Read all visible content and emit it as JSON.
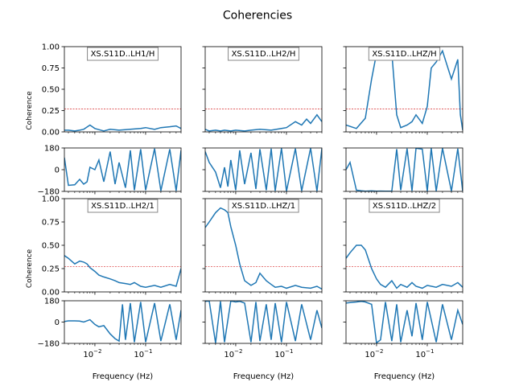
{
  "figure": {
    "title": "Coherencies",
    "xlabel": "Frequency (Hz)",
    "coh_ylabel": "Coherence"
  },
  "chart_data": {
    "type": "line",
    "title": "Coherencies",
    "xscale": "log",
    "xlim": [
      0.0025,
      0.5
    ],
    "xticks": [
      {
        "v": 0.01,
        "label": "10^-2"
      },
      {
        "v": 0.1,
        "label": "10^-1"
      }
    ],
    "coh_ylim": [
      0,
      1
    ],
    "coh_yticks": [
      "0.00",
      "0.25",
      "0.50",
      "0.75",
      "1.00"
    ],
    "phase_ylim": [
      -180,
      180
    ],
    "phase_yticks": [
      "−180",
      "0",
      "180"
    ],
    "threshold": 0.27,
    "line_color": "#1f77b4",
    "threshold_color": "#d62728",
    "panels": [
      {
        "label": "XS.S11D..LH1/H",
        "coherence": {
          "x": [
            0.0025,
            0.003,
            0.004,
            0.005,
            0.006,
            0.008,
            0.01,
            0.015,
            0.02,
            0.03,
            0.05,
            0.08,
            0.1,
            0.15,
            0.2,
            0.3,
            0.4,
            0.5
          ],
          "y": [
            0.02,
            0.02,
            0.01,
            0.02,
            0.03,
            0.08,
            0.04,
            0.01,
            0.03,
            0.02,
            0.03,
            0.04,
            0.05,
            0.03,
            0.05,
            0.06,
            0.07,
            0.04
          ]
        },
        "phase": {
          "x": [
            0.0025,
            0.003,
            0.004,
            0.005,
            0.006,
            0.007,
            0.008,
            0.01,
            0.012,
            0.015,
            0.02,
            0.025,
            0.03,
            0.04,
            0.05,
            0.06,
            0.08,
            0.1,
            0.15,
            0.2,
            0.3,
            0.4,
            0.5
          ],
          "y": [
            100,
            -130,
            -125,
            -80,
            -120,
            -100,
            20,
            0,
            80,
            -100,
            150,
            -120,
            60,
            -150,
            160,
            -170,
            170,
            -170,
            175,
            -175,
            170,
            -175,
            160
          ]
        }
      },
      {
        "label": "XS.S11D..LH2/H",
        "coherence": {
          "x": [
            0.0025,
            0.003,
            0.004,
            0.005,
            0.006,
            0.008,
            0.01,
            0.015,
            0.02,
            0.03,
            0.05,
            0.08,
            0.1,
            0.15,
            0.2,
            0.25,
            0.3,
            0.4,
            0.5
          ],
          "y": [
            0.03,
            0.01,
            0.02,
            0.01,
            0.02,
            0.01,
            0.02,
            0.01,
            0.02,
            0.03,
            0.02,
            0.04,
            0.05,
            0.12,
            0.08,
            0.15,
            0.1,
            0.2,
            0.12
          ]
        },
        "phase": {
          "x": [
            0.0025,
            0.003,
            0.004,
            0.005,
            0.006,
            0.007,
            0.008,
            0.01,
            0.012,
            0.015,
            0.02,
            0.025,
            0.03,
            0.04,
            0.05,
            0.06,
            0.08,
            0.1,
            0.15,
            0.2,
            0.3,
            0.4,
            0.5
          ],
          "y": [
            150,
            60,
            -20,
            -150,
            20,
            -140,
            80,
            -170,
            160,
            -120,
            140,
            -160,
            170,
            -170,
            175,
            -175,
            178,
            -178,
            175,
            -175,
            178,
            -178,
            175
          ]
        }
      },
      {
        "label": "XS.S11D..LHZ/H",
        "coherence": {
          "x": [
            0.0025,
            0.004,
            0.006,
            0.008,
            0.01,
            0.012,
            0.015,
            0.02,
            0.025,
            0.03,
            0.04,
            0.05,
            0.06,
            0.08,
            0.1,
            0.12,
            0.15,
            0.2,
            0.3,
            0.4,
            0.45,
            0.5
          ],
          "y": [
            0.08,
            0.04,
            0.16,
            0.62,
            0.92,
            0.98,
            0.88,
            0.93,
            0.2,
            0.05,
            0.08,
            0.12,
            0.2,
            0.1,
            0.3,
            0.75,
            0.82,
            0.95,
            0.62,
            0.85,
            0.2,
            0.02
          ]
        },
        "phase": {
          "x": [
            0.0025,
            0.003,
            0.004,
            0.005,
            0.006,
            0.008,
            0.01,
            0.012,
            0.015,
            0.02,
            0.025,
            0.03,
            0.04,
            0.05,
            0.06,
            0.08,
            0.1,
            0.12,
            0.15,
            0.2,
            0.3,
            0.4,
            0.5
          ],
          "y": [
            0,
            60,
            -170,
            -175,
            -178,
            -176,
            -178,
            -177,
            -179,
            -178,
            170,
            -170,
            175,
            -175,
            178,
            170,
            -178,
            178,
            -178,
            178,
            -178,
            175,
            -178
          ]
        }
      },
      {
        "label": "XS.S11D..LH2/1",
        "coherence": {
          "x": [
            0.0025,
            0.003,
            0.004,
            0.005,
            0.006,
            0.007,
            0.008,
            0.01,
            0.012,
            0.015,
            0.02,
            0.025,
            0.03,
            0.04,
            0.05,
            0.06,
            0.08,
            0.1,
            0.15,
            0.2,
            0.3,
            0.4,
            0.5
          ],
          "y": [
            0.39,
            0.36,
            0.3,
            0.33,
            0.32,
            0.3,
            0.26,
            0.22,
            0.18,
            0.16,
            0.14,
            0.12,
            0.1,
            0.09,
            0.08,
            0.1,
            0.06,
            0.05,
            0.07,
            0.05,
            0.08,
            0.06,
            0.25
          ]
        },
        "phase": {
          "x": [
            0.0025,
            0.003,
            0.004,
            0.005,
            0.006,
            0.008,
            0.01,
            0.012,
            0.015,
            0.02,
            0.025,
            0.03,
            0.035,
            0.04,
            0.05,
            0.06,
            0.08,
            0.1,
            0.15,
            0.2,
            0.3,
            0.4,
            0.5
          ],
          "y": [
            5,
            10,
            10,
            8,
            0,
            20,
            -20,
            -40,
            -30,
            -100,
            -140,
            -160,
            150,
            -150,
            160,
            -170,
            170,
            -170,
            160,
            -160,
            150,
            -150,
            100
          ]
        }
      },
      {
        "label": "XS.S11D..LHZ/1",
        "coherence": {
          "x": [
            0.0025,
            0.003,
            0.004,
            0.005,
            0.006,
            0.007,
            0.008,
            0.01,
            0.012,
            0.015,
            0.02,
            0.025,
            0.03,
            0.04,
            0.05,
            0.06,
            0.08,
            0.1,
            0.15,
            0.2,
            0.3,
            0.4,
            0.5
          ],
          "y": [
            0.69,
            0.75,
            0.85,
            0.9,
            0.88,
            0.85,
            0.7,
            0.5,
            0.3,
            0.12,
            0.07,
            0.1,
            0.2,
            0.12,
            0.08,
            0.05,
            0.06,
            0.04,
            0.07,
            0.05,
            0.04,
            0.06,
            0.03
          ]
        },
        "phase": {
          "x": [
            0.0025,
            0.003,
            0.004,
            0.005,
            0.006,
            0.008,
            0.01,
            0.012,
            0.015,
            0.02,
            0.025,
            0.03,
            0.04,
            0.05,
            0.06,
            0.08,
            0.1,
            0.15,
            0.2,
            0.3,
            0.4,
            0.5
          ],
          "y": [
            175,
            178,
            -178,
            175,
            -170,
            178,
            170,
            175,
            160,
            -170,
            170,
            -160,
            150,
            -150,
            160,
            -170,
            170,
            -160,
            150,
            -150,
            100,
            -50
          ]
        }
      },
      {
        "label": "XS.S11D..LHZ/2",
        "coherence": {
          "x": [
            0.0025,
            0.003,
            0.004,
            0.005,
            0.006,
            0.008,
            0.01,
            0.012,
            0.015,
            0.02,
            0.025,
            0.03,
            0.04,
            0.05,
            0.06,
            0.08,
            0.1,
            0.15,
            0.2,
            0.3,
            0.4,
            0.5
          ],
          "y": [
            0.36,
            0.42,
            0.5,
            0.5,
            0.45,
            0.25,
            0.14,
            0.08,
            0.05,
            0.12,
            0.04,
            0.08,
            0.05,
            0.1,
            0.06,
            0.04,
            0.07,
            0.05,
            0.08,
            0.06,
            0.1,
            0.05
          ]
        },
        "phase": {
          "x": [
            0.0025,
            0.003,
            0.004,
            0.005,
            0.006,
            0.008,
            0.01,
            0.012,
            0.015,
            0.02,
            0.025,
            0.03,
            0.04,
            0.05,
            0.06,
            0.08,
            0.1,
            0.15,
            0.2,
            0.3,
            0.4,
            0.5
          ],
          "y": [
            160,
            165,
            170,
            175,
            170,
            150,
            -175,
            -150,
            170,
            -160,
            150,
            -170,
            100,
            -120,
            160,
            -150,
            170,
            -170,
            150,
            -150,
            100,
            -20
          ]
        }
      }
    ]
  }
}
